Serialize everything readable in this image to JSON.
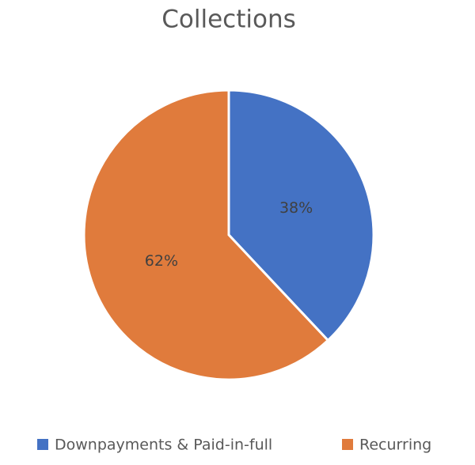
{
  "chart_data": {
    "type": "pie",
    "title": "Collections",
    "categories": [
      "Downpayments & Paid-in-full",
      "Recurring"
    ],
    "values": [
      38,
      62
    ],
    "value_labels": [
      "38%",
      "62%"
    ],
    "colors": [
      "#4472c4",
      "#e07b3c"
    ]
  }
}
